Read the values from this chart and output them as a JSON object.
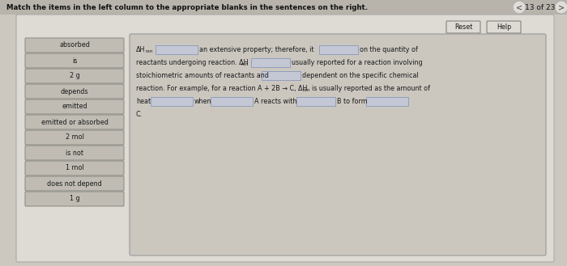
{
  "title": "Match the items in the left column to the appropriate blanks in the sentences on the right.",
  "nav_text": "13 of 23",
  "left_items": [
    "absorbed",
    "is",
    "2 g",
    "depends",
    "emitted",
    "emitted or absorbed",
    "2 mol",
    "is not",
    "1 mol",
    "does not depend",
    "1 g"
  ],
  "bg_color": "#ccc8c0",
  "panel_bg": "#dedad4",
  "left_btn_bg": "#c0bcb4",
  "left_btn_border": "#888880",
  "right_box_bg": "#cbc7bf",
  "blank_bg": "#c4c8d4",
  "blank_border": "#8899bb",
  "text_color": "#1a1a1a",
  "header_color": "#111111",
  "reset_btn_bg": "#dedad4",
  "reset_btn_border": "#777777",
  "nav_btn_color": "#444444",
  "top_bar_color": "#b8b4ac"
}
